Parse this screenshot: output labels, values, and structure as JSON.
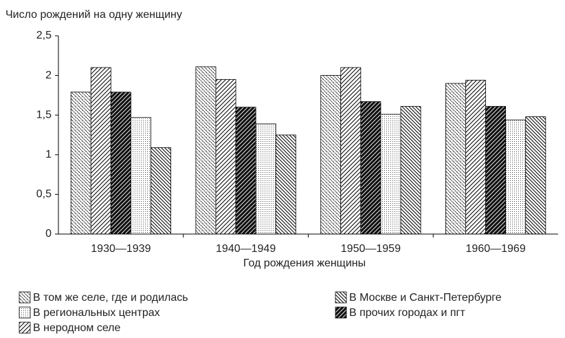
{
  "chart_data": {
    "type": "bar",
    "ylabel": "Число рождений на одну женщину",
    "xlabel": "Год рождения женщины",
    "categories": [
      "1930—1939",
      "1940—1949",
      "1950—1959",
      "1960—1969"
    ],
    "series": [
      {
        "name": "В том же селе, где и родилась",
        "values": [
          1.79,
          2.11,
          2.0,
          1.9
        ]
      },
      {
        "name": "В неродном селе",
        "values": [
          2.1,
          1.95,
          2.1,
          1.94
        ]
      },
      {
        "name": "В прочих городах и пгт",
        "values": [
          1.79,
          1.6,
          1.67,
          1.61
        ]
      },
      {
        "name": "В региональных центрах",
        "values": [
          1.47,
          1.39,
          1.51,
          1.44
        ]
      },
      {
        "name": "В Москве и Санкт-Петербурге",
        "values": [
          1.09,
          1.25,
          1.61,
          1.48
        ]
      }
    ],
    "ylim": [
      0,
      2.5
    ],
    "yticks": [
      0,
      {
        "value": 0.5,
        "label": "0,5"
      },
      1,
      {
        "value": 1.5,
        "label": "1,5"
      },
      2,
      {
        "value": 2.5,
        "label": "2,5"
      }
    ]
  }
}
